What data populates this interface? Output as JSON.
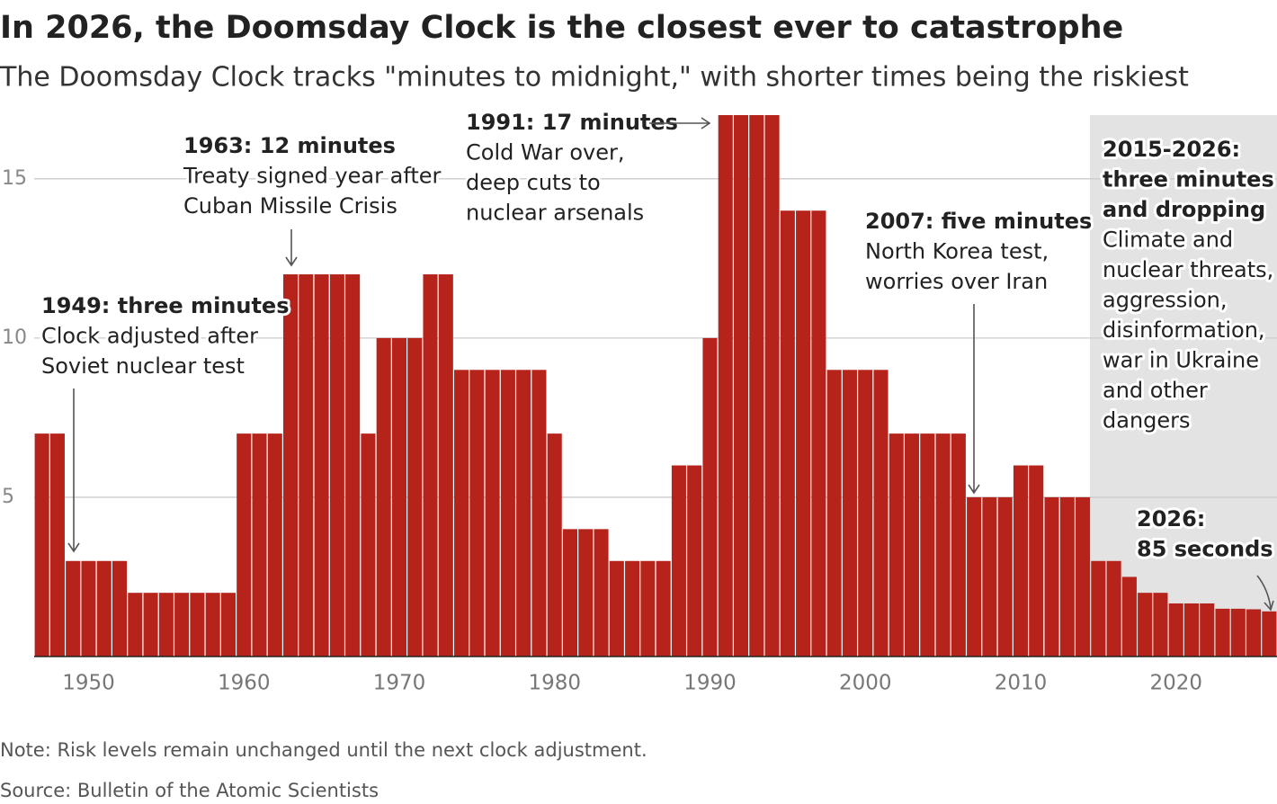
{
  "chart_data": {
    "type": "bar",
    "title": "In 2026, the Doomsday Clock is the closest ever to catastrophe",
    "subtitle": "The Doomsday Clock tracks \"minutes to midnight,\" with shorter times being the riskiest",
    "x": [
      1947,
      1948,
      1949,
      1950,
      1951,
      1952,
      1953,
      1954,
      1955,
      1956,
      1957,
      1958,
      1959,
      1960,
      1961,
      1962,
      1963,
      1964,
      1965,
      1966,
      1967,
      1968,
      1969,
      1970,
      1971,
      1972,
      1973,
      1974,
      1975,
      1976,
      1977,
      1978,
      1979,
      1980,
      1981,
      1982,
      1983,
      1984,
      1985,
      1986,
      1987,
      1988,
      1989,
      1990,
      1991,
      1992,
      1993,
      1994,
      1995,
      1996,
      1997,
      1998,
      1999,
      2000,
      2001,
      2002,
      2003,
      2004,
      2005,
      2006,
      2007,
      2008,
      2009,
      2010,
      2011,
      2012,
      2013,
      2014,
      2015,
      2016,
      2017,
      2018,
      2019,
      2020,
      2021,
      2022,
      2023,
      2024,
      2025,
      2026
    ],
    "values": [
      7,
      7,
      3,
      3,
      3,
      3,
      2,
      2,
      2,
      2,
      2,
      2,
      2,
      7,
      7,
      7,
      12,
      12,
      12,
      12,
      12,
      7,
      10,
      10,
      10,
      12,
      12,
      9,
      9,
      9,
      9,
      9,
      9,
      7,
      4,
      4,
      4,
      3,
      3,
      3,
      3,
      6,
      6,
      10,
      17,
      17,
      17,
      17,
      14,
      14,
      14,
      9,
      9,
      9,
      9,
      7,
      7,
      7,
      7,
      7,
      5,
      5,
      5,
      6,
      6,
      5,
      5,
      5,
      3,
      3,
      2.5,
      2,
      2,
      1.667,
      1.667,
      1.667,
      1.5,
      1.5,
      1.483,
      1.417
    ],
    "color": "#b5231a",
    "xlim": [
      1946.5,
      2026.5
    ],
    "xticks": [
      1950,
      1960,
      1970,
      1980,
      1990,
      2000,
      2010,
      2020
    ],
    "ylim": [
      0,
      17
    ],
    "yticks": [
      5,
      10,
      15
    ],
    "grid": true,
    "annotations": [
      {
        "title": [
          "1949: three minutes"
        ],
        "text": [
          "Clock adjusted after",
          "Soviet nuclear test"
        ]
      },
      {
        "title": [
          "1963: 12 minutes"
        ],
        "text": [
          "Treaty signed year after",
          "Cuban Missile Crisis"
        ]
      },
      {
        "title": [
          "1991: 17 minutes"
        ],
        "text": [
          "Cold War over,",
          "deep cuts to",
          "nuclear arsenals"
        ]
      },
      {
        "title": [
          "2007: five minutes"
        ],
        "text": [
          "North Korea test,",
          "worries over Iran"
        ]
      },
      {
        "title": [
          "2015-2026:",
          "three minutes",
          "and dropping"
        ],
        "text": [
          "Climate and",
          "nuclear threats,",
          "aggression,",
          "disinformation,",
          "war in Ukraine",
          "and other",
          "dangers"
        ]
      },
      {
        "title": [
          "2026:",
          "85 seconds"
        ],
        "text": []
      }
    ],
    "note": "Note: Risk levels remain unchanged until the next clock adjustment.",
    "source": "Source: Bulletin of the Atomic Scientists"
  }
}
